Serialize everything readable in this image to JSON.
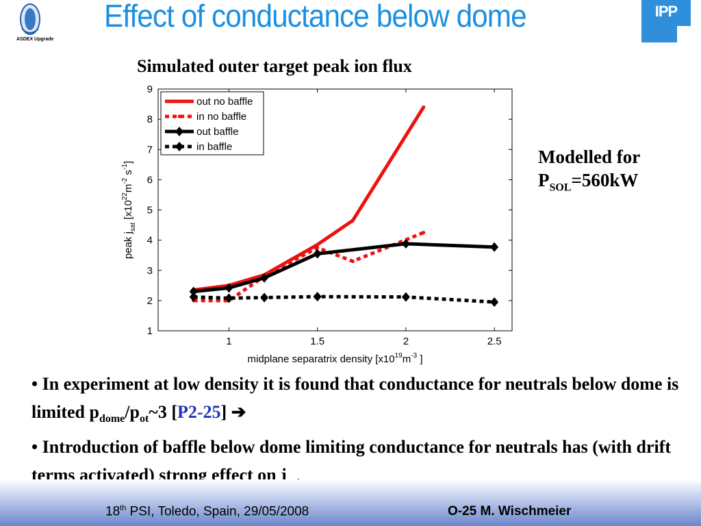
{
  "header": {
    "title": "Effect of conductance below dome",
    "logo_left_text": "ASDEX Upgrade",
    "logo_right_text": "IPP"
  },
  "side_note": {
    "line1": "Modelled for",
    "p": "P",
    "sub": "SOL",
    "value": "=560kW"
  },
  "bullets": {
    "b1_dot": "•",
    "b1_text": "In experiment at low density it is found that conductance for neutrals below dome is limited p",
    "b1_sub1": "dome",
    "b1_slash": "/p",
    "b1_sub2": "ot",
    "b1_tail": "~3 [",
    "b1_ref": "P2-25",
    "b1_close": "]",
    "b1_arrow": "➔",
    "b2_dot": "•",
    "b2_text": "Introduction of baffle below dome limiting conductance for neutrals has (with drift terms activated) strong effect on j",
    "b2_sub": "sat"
  },
  "footer": {
    "left_num": "18",
    "left_sup": "th",
    "left_rest": " PSI, Toledo, Spain, 29/05/2008",
    "right": "O-25 M. Wischmeier"
  },
  "chart_data": {
    "type": "line",
    "title": "Simulated outer target peak ion flux",
    "xlabel_parts": {
      "pre": "midplane separatrix density [x10",
      "sup1": "19",
      "mid": "m",
      "sup2": "-3",
      "post": " ]"
    },
    "ylabel_parts": {
      "pre": "peak j",
      "sub": "sat",
      "mid": " [x10",
      "sup1": "22",
      "m": "m",
      "sup2": "-2",
      "s": " s",
      "sup3": "-1",
      "post": "]"
    },
    "xlim": [
      0.6,
      2.6
    ],
    "ylim": [
      1,
      9
    ],
    "xticks": [
      1,
      1.5,
      2,
      2.5
    ],
    "yticks": [
      1,
      2,
      3,
      4,
      5,
      6,
      7,
      8,
      9
    ],
    "grid": false,
    "legend_position": "top-left",
    "series": [
      {
        "name": "out no baffle",
        "color": "#ee1111",
        "dashed": false,
        "marker": "point",
        "x": [
          0.8,
          1.0,
          1.2,
          1.5,
          1.7,
          2.1
        ],
        "y": [
          2.35,
          2.5,
          2.85,
          3.85,
          4.65,
          8.4
        ]
      },
      {
        "name": "in no baffle",
        "color": "#ee1111",
        "dashed": true,
        "marker": "point",
        "x": [
          0.8,
          1.0,
          1.2,
          1.5,
          1.7,
          2.1
        ],
        "y": [
          2.0,
          2.0,
          2.8,
          3.75,
          3.3,
          4.25
        ]
      },
      {
        "name": "out baffle",
        "color": "#000000",
        "dashed": false,
        "marker": "diamond",
        "x": [
          0.8,
          1.0,
          1.2,
          1.5,
          2.0,
          2.5
        ],
        "y": [
          2.3,
          2.42,
          2.75,
          3.55,
          3.88,
          3.77
        ]
      },
      {
        "name": "in baffle",
        "color": "#000000",
        "dashed": true,
        "marker": "diamond",
        "x": [
          0.8,
          1.0,
          1.2,
          1.5,
          2.0,
          2.5
        ],
        "y": [
          2.12,
          2.08,
          2.1,
          2.13,
          2.12,
          1.95
        ]
      }
    ]
  }
}
